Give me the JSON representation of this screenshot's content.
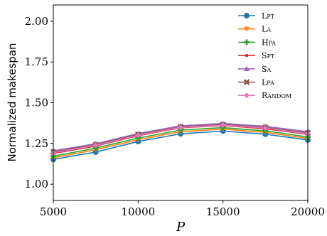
{
  "chart_data": {
    "type": "line",
    "xlabel": "P",
    "ylabel": "Normalized makespan",
    "xlim": [
      5000,
      20000
    ],
    "ylim": [
      0.9,
      2.1
    ],
    "xticks": [
      5000,
      10000,
      15000,
      20000
    ],
    "yticks": [
      1.0,
      1.25,
      1.5,
      1.75,
      2.0
    ],
    "xtick_labels": [
      "5000",
      "10000",
      "15000",
      "20000"
    ],
    "ytick_labels": [
      "1.00",
      "1.25",
      "1.50",
      "1.75",
      "2.00"
    ],
    "grid": false,
    "legend_position": "top-right",
    "x": [
      5000,
      7500,
      10000,
      12500,
      15000,
      17500,
      20000
    ],
    "series": [
      {
        "name": "Lpt",
        "marker": "circle",
        "color": "#1f77b4",
        "values": [
          1.152,
          1.197,
          1.262,
          1.309,
          1.326,
          1.307,
          1.271
        ]
      },
      {
        "name": "La",
        "marker": "triangle-down",
        "color": "#ff7f0e",
        "values": [
          1.162,
          1.211,
          1.273,
          1.322,
          1.338,
          1.318,
          1.281
        ]
      },
      {
        "name": "Hpa",
        "marker": "plus",
        "color": "#2ca02c",
        "values": [
          1.172,
          1.221,
          1.283,
          1.332,
          1.347,
          1.327,
          1.29
        ]
      },
      {
        "name": "Spt",
        "marker": "dot",
        "color": "#d62728",
        "values": [
          1.188,
          1.234,
          1.297,
          1.346,
          1.36,
          1.34,
          1.306
        ]
      },
      {
        "name": "Sa",
        "marker": "triangle-up",
        "color": "#9467bd",
        "values": [
          1.205,
          1.248,
          1.311,
          1.358,
          1.373,
          1.355,
          1.322
        ]
      },
      {
        "name": "Lpa",
        "marker": "x",
        "color": "#8c564b",
        "values": [
          1.198,
          1.242,
          1.305,
          1.352,
          1.366,
          1.348,
          1.315
        ]
      },
      {
        "name": "Random",
        "marker": "diamond",
        "color": "#e377c2",
        "values": [
          1.193,
          1.238,
          1.3,
          1.348,
          1.362,
          1.344,
          1.31
        ]
      }
    ]
  }
}
